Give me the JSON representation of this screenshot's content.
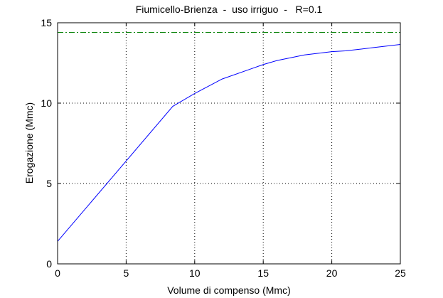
{
  "chart_data": {
    "type": "line",
    "title": "Fiumicello-Brienza  -  uso irriguo  -   R=0.1",
    "xlabel": "Volume di compenso (Mmc)",
    "ylabel": "Erogazione (Mmc)",
    "xlim": [
      0,
      25
    ],
    "xticks": [
      0,
      5,
      10,
      15,
      20,
      25
    ],
    "ylim": [
      0,
      15
    ],
    "yticks": [
      0,
      5,
      10,
      15
    ],
    "grid": true,
    "series": [
      {
        "color": "#0000ff",
        "dash": "solid",
        "x": [
          0,
          8.4,
          10,
          12,
          14,
          15,
          16,
          18,
          20,
          21,
          23,
          25
        ],
        "values": [
          1.4,
          9.8,
          10.6,
          11.5,
          12.1,
          12.4,
          12.65,
          13.0,
          13.2,
          13.25,
          13.45,
          13.65
        ]
      },
      {
        "color": "#007f00",
        "dash": "dashdot",
        "x": [
          0,
          25
        ],
        "values": [
          14.4,
          14.4
        ]
      }
    ]
  }
}
